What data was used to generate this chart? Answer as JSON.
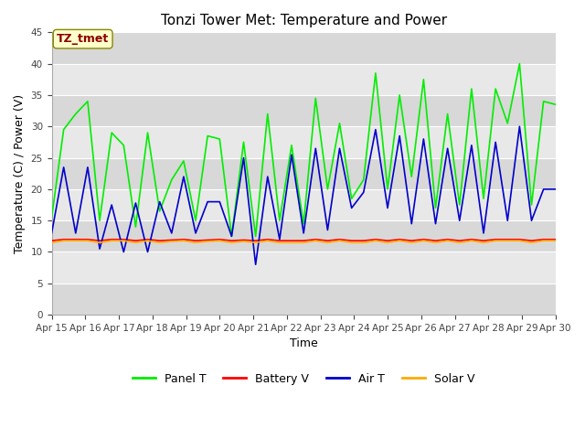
{
  "title": "Tonzi Tower Met: Temperature and Power",
  "xlabel": "Time",
  "ylabel": "Temperature (C) / Power (V)",
  "ylim": [
    0,
    45
  ],
  "yticks": [
    0,
    5,
    10,
    15,
    20,
    25,
    30,
    35,
    40,
    45
  ],
  "annotation": "TZ_tmet",
  "legend_entries": [
    "Panel T",
    "Battery V",
    "Air T",
    "Solar V"
  ],
  "legend_colors": [
    "#00dd00",
    "#ff0000",
    "#0000cc",
    "#ffaa00"
  ],
  "x_tick_labels": [
    "Apr 15",
    "Apr 16",
    "Apr 17",
    "Apr 18",
    "Apr 19",
    "Apr 20",
    "Apr 21",
    "Apr 22",
    "Apr 23",
    "Apr 24",
    "Apr 25",
    "Apr 26",
    "Apr 27",
    "Apr 28",
    "Apr 29",
    "Apr 30"
  ],
  "panel_t": [
    15.5,
    29.5,
    32.0,
    34.0,
    15.0,
    29.0,
    27.0,
    14.0,
    29.0,
    16.5,
    21.5,
    24.5,
    15.0,
    28.5,
    28.0,
    12.5,
    27.5,
    12.5,
    32.0,
    15.0,
    27.0,
    14.5,
    34.5,
    20.0,
    30.5,
    18.5,
    21.5,
    38.5,
    20.0,
    35.0,
    22.0,
    37.5,
    17.0,
    32.0,
    17.5,
    36.0,
    18.5,
    36.0,
    30.5,
    40.0,
    17.5,
    34.0,
    33.5
  ],
  "battery_v": [
    11.8,
    12.0,
    12.0,
    12.0,
    11.8,
    12.0,
    12.0,
    11.8,
    12.0,
    11.8,
    11.9,
    12.0,
    11.8,
    11.9,
    12.0,
    11.8,
    11.9,
    11.8,
    12.0,
    11.8,
    11.8,
    11.8,
    12.0,
    11.8,
    12.0,
    11.8,
    11.8,
    12.0,
    11.8,
    12.0,
    11.8,
    12.0,
    11.8,
    12.0,
    11.8,
    12.0,
    11.8,
    12.0,
    12.0,
    12.0,
    11.8,
    12.0,
    12.0
  ],
  "air_t": [
    13.0,
    23.5,
    13.0,
    23.5,
    10.5,
    17.5,
    10.0,
    17.8,
    10.0,
    18.0,
    13.0,
    22.0,
    13.0,
    18.0,
    18.0,
    12.5,
    25.0,
    8.0,
    22.0,
    12.0,
    25.5,
    13.0,
    26.5,
    13.5,
    26.5,
    17.0,
    19.5,
    29.5,
    17.0,
    28.5,
    14.5,
    28.0,
    14.5,
    26.5,
    15.0,
    27.0,
    13.0,
    27.5,
    15.0,
    30.0,
    15.0,
    20.0,
    20.0
  ],
  "solar_v": [
    11.5,
    11.8,
    11.8,
    11.8,
    11.5,
    11.8,
    11.8,
    11.5,
    11.8,
    11.5,
    11.7,
    11.8,
    11.5,
    11.7,
    11.8,
    11.5,
    11.7,
    11.5,
    11.8,
    11.5,
    11.5,
    11.5,
    11.8,
    11.5,
    11.8,
    11.5,
    11.5,
    11.8,
    11.5,
    11.8,
    11.5,
    11.8,
    11.5,
    11.8,
    11.5,
    11.8,
    11.5,
    11.8,
    11.8,
    11.8,
    11.5,
    11.8,
    11.8
  ],
  "fig_bg": "#ffffff",
  "axes_bg": "#e8e8e8",
  "band_light": "#e8e8e8",
  "band_dark": "#d8d8d8"
}
